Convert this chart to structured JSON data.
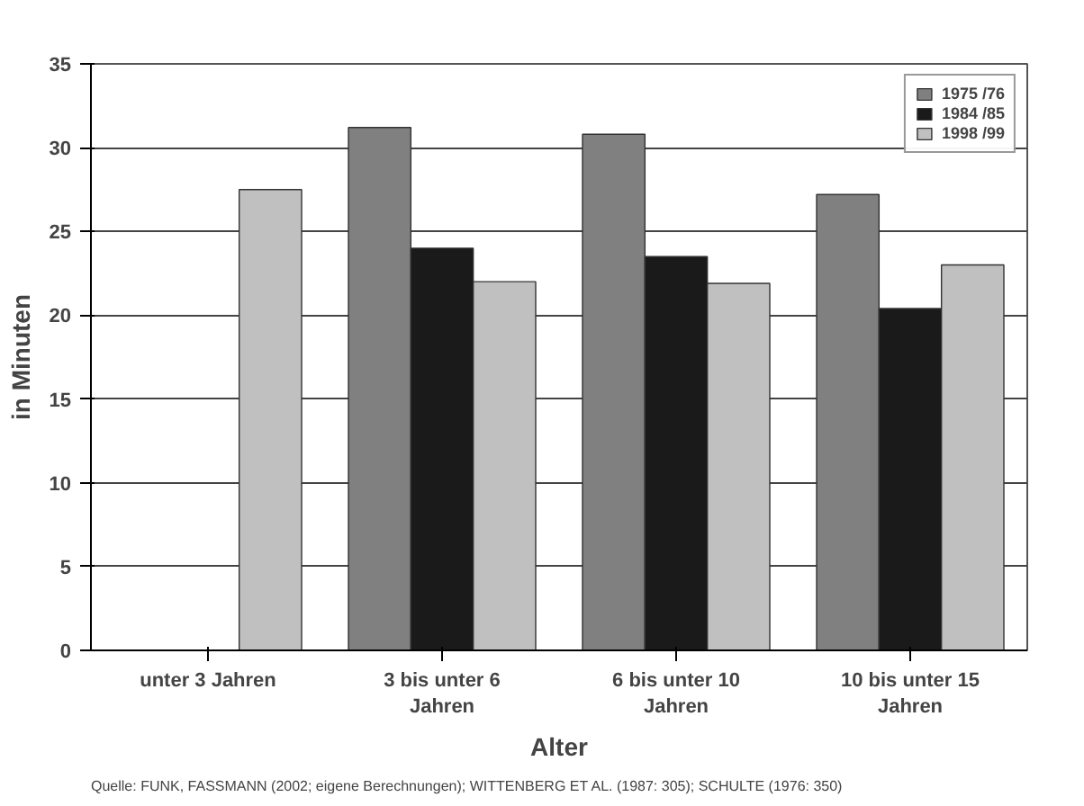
{
  "chart_data": {
    "type": "bar",
    "xlabel": "Alter",
    "ylabel": "in Minuten",
    "categories": [
      "unter 3 Jahren",
      "3 bis unter 6 Jahren",
      "6 bis unter 10 Jahren",
      "10 bis unter 15 Jahren"
    ],
    "series": [
      {
        "name": "1975 /76",
        "color": "#808080",
        "values": [
          null,
          31.2,
          30.8,
          27.2
        ]
      },
      {
        "name": "1984 /85",
        "color": "#1a1a1a",
        "values": [
          null,
          24,
          23.5,
          20.4
        ]
      },
      {
        "name": "1998 /99",
        "color": "#c0c0c0",
        "values": [
          27.5,
          22,
          21.9,
          23
        ]
      }
    ],
    "ylim": [
      0,
      35
    ],
    "yticks": [
      0,
      5,
      10,
      15,
      20,
      25,
      30,
      35
    ],
    "grid": "y",
    "legend": "top right",
    "annotations": [
      "Quelle: FUNK, FASSMANN (2002; eigene Berechnungen); WITTENBERG ET AL. (1987: 305); SCHULTE (1976: 350)"
    ]
  }
}
